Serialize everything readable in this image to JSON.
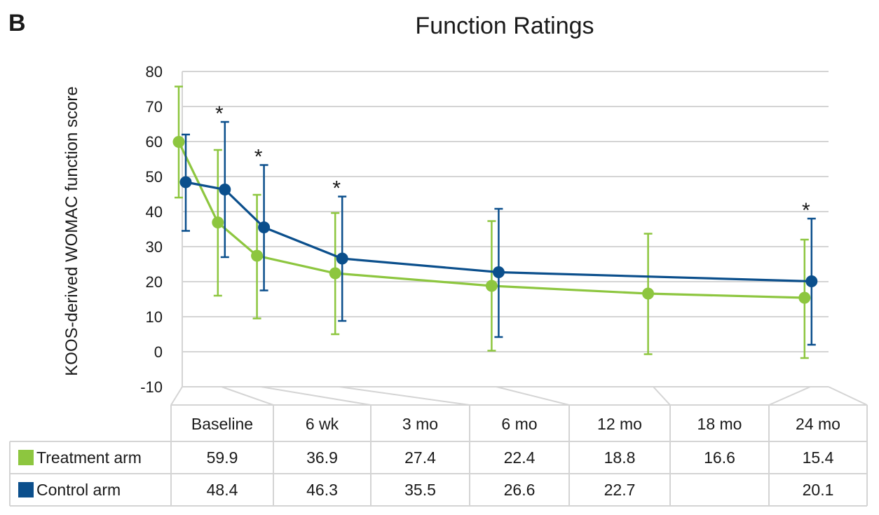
{
  "chart_data": {
    "type": "line",
    "panel_letter": "B",
    "title": "Function Ratings",
    "xlabel": "",
    "ylabel": "KOOS-derived WOMAC function score",
    "ylim": [
      -10,
      80
    ],
    "yticks": [
      -10,
      0,
      10,
      20,
      30,
      40,
      50,
      60,
      70,
      80
    ],
    "grid": true,
    "categories": [
      "Baseline",
      "6 wk",
      "3 mo",
      "6 mo",
      "12 mo",
      "18 mo",
      "24 mo"
    ],
    "x_months": [
      0,
      1.5,
      3,
      6,
      12,
      18,
      24
    ],
    "series": [
      {
        "name": "Treatment arm",
        "color": "#8dc63f",
        "values": [
          59.9,
          36.9,
          27.4,
          22.4,
          18.8,
          16.6,
          15.4
        ],
        "error_low": [
          44,
          16,
          9.5,
          5,
          0.3,
          -0.7,
          -1.8
        ],
        "error_high": [
          75.7,
          57.6,
          44.8,
          39.6,
          37.3,
          33.7,
          32
        ]
      },
      {
        "name": "Control arm",
        "color": "#0b4f8c",
        "values": [
          48.4,
          46.3,
          35.5,
          26.6,
          22.7,
          null,
          20.1
        ],
        "error_low": [
          34.5,
          27,
          17.5,
          8.8,
          4.2,
          null,
          2
        ],
        "error_high": [
          62,
          65.6,
          53.3,
          44.3,
          40.8,
          null,
          38
        ]
      }
    ],
    "significance_markers": [
      {
        "category_index": 1,
        "label": "*"
      },
      {
        "category_index": 2,
        "label": "*"
      },
      {
        "category_index": 3,
        "label": "*"
      },
      {
        "category_index": 6,
        "label": "*"
      }
    ],
    "table": {
      "rows": [
        {
          "label": "Treatment arm",
          "values": [
            "59.9",
            "36.9",
            "27.4",
            "22.4",
            "18.8",
            "16.6",
            "15.4"
          ]
        },
        {
          "label": "Control arm",
          "values": [
            "48.4",
            "46.3",
            "35.5",
            "26.6",
            "22.7",
            "",
            "20.1"
          ]
        }
      ]
    }
  }
}
